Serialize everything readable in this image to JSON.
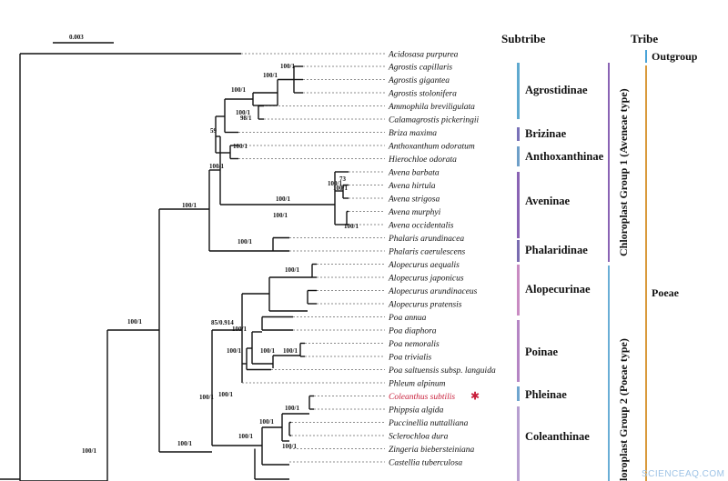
{
  "scale_bar_label": "0.003",
  "headers": {
    "subtribe": "Subtribe",
    "tribe": "Tribe"
  },
  "taxa": [
    "Acidosasa purpurea",
    "Agrostis capillaris",
    "Agrostis gigantea",
    "Agrostis stolonifera",
    "Ammophila breviligulata",
    "Calamagrostis pickeringii",
    "Briza maxima",
    "Anthoxanthum odoratum",
    "Hierochloe odorata",
    "Avena barbata",
    "Avena hirtula",
    "Avena strigosa",
    "Avena murphyi",
    "Avena occidentalis",
    "Phalaris arundinacea",
    "Phalaris caerulescens",
    "Alopecurus aequalis",
    "Alopecurus japonicus",
    "Alopecurus arundinaceus",
    "Alopecurus pratensis",
    "Poa annua",
    "Poa diaphora",
    "Poa nemoralis",
    "Poa trivialis",
    "Poa saltuensis subsp. languida",
    "Phleum alpinum",
    "Coleanthus subtilis",
    "Phippsia algida",
    "Puccinellia nuttalliana",
    "Sclerochloa dura",
    "Zingeria biebersteiniana",
    "Castellia tuberculosa"
  ],
  "highlight_taxon": "Coleanthus subtilis",
  "support_labels": [
    "100/1",
    "100/1",
    "100/1",
    "98/1",
    "100/1",
    "100/1",
    "59",
    "100/1",
    "73",
    "100/1",
    "100/1",
    "100/1",
    "100/1",
    "100/1",
    "100/1",
    "100/1",
    "85/0.914",
    "100/1",
    "100/1",
    "100/1",
    "100/1",
    "100/1",
    "100/1",
    "100/1",
    "100/1",
    "100/1",
    "100/1",
    "100/1"
  ],
  "subtribes": [
    "Agrostidinae",
    "Brizinae",
    "Anthoxanthinae",
    "Aveninae",
    "Phalaridinae",
    "Alopecurinae",
    "Poinae",
    "Phleinae",
    "Coleanthinae"
  ],
  "groups": [
    "Chloroplast Group 1 (Aveneae type)",
    "loroplast Group 2 (Poeae type)"
  ],
  "tribes": [
    "Outgroup",
    "Poeae"
  ],
  "watermark": "SCIENCEAQ.COM",
  "colors": {
    "agrostidinae": "#5fa9cf",
    "brizinae": "#7a72b8",
    "anthoxanthinae": "#6e9fc8",
    "aveninae": "#8a63b4",
    "phalaridinae": "#7a6cb0",
    "alopecurinae": "#c98bc2",
    "poinae": "#b585c4",
    "phleinae": "#6fa5cf",
    "coleanthinae": "#b79fd0",
    "group1": "#8a63b4",
    "group2": "#6aaed6",
    "outgroup": "#4aa3d8",
    "poeae": "#d99a3c",
    "highlight": "#c81e3a"
  }
}
